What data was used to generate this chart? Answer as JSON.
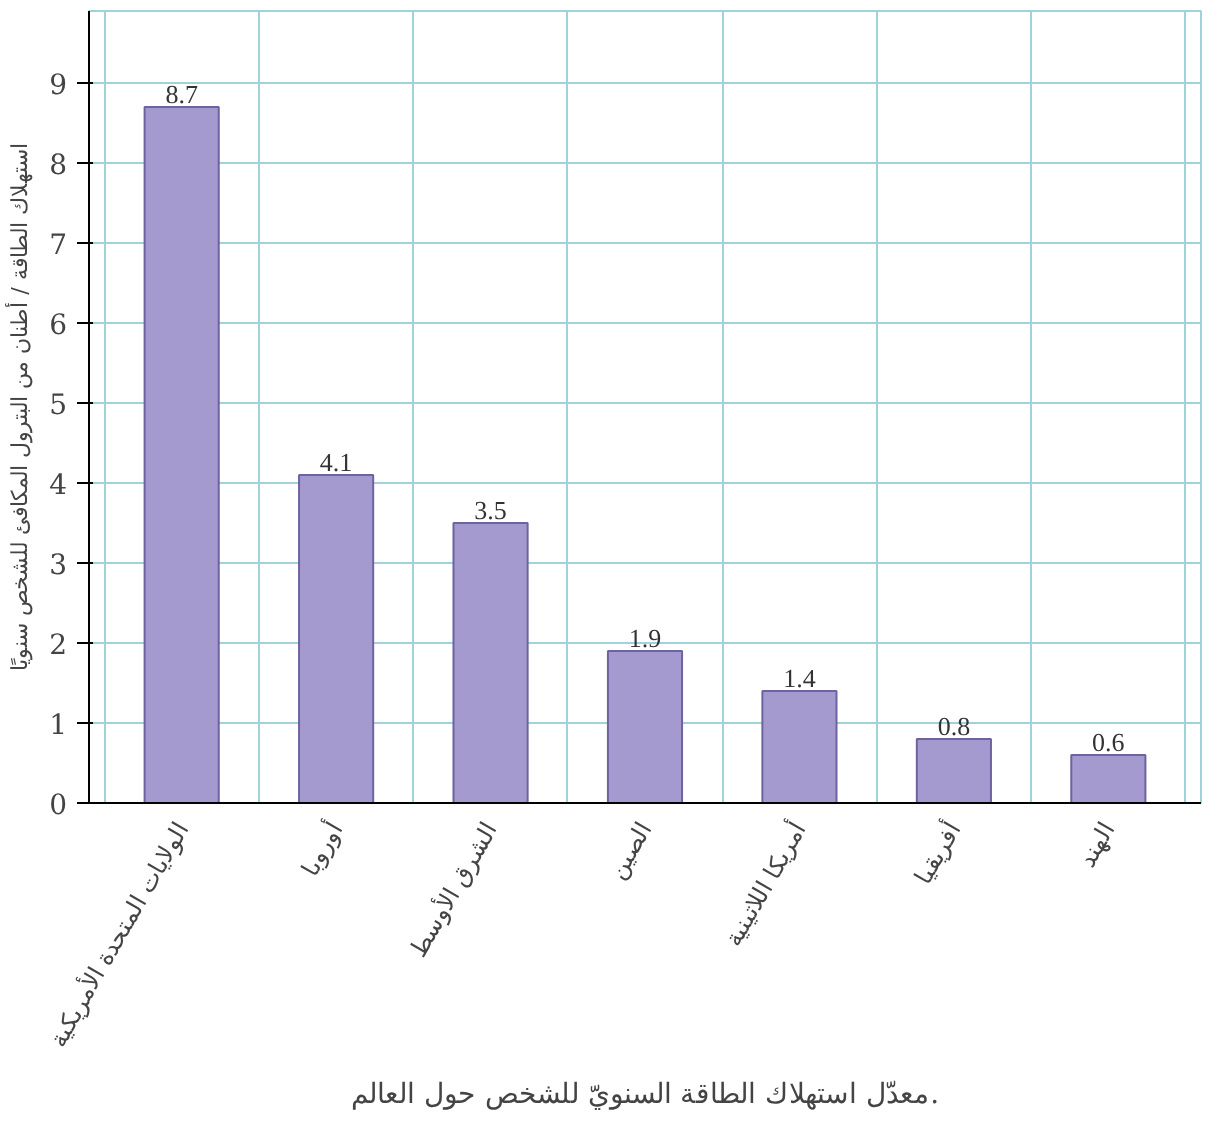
{
  "chart_data": {
    "type": "bar",
    "title": "معدّل استهلاك الطاقة السنويّ للشخص حول العالم.",
    "ylabel": "استهلاك الطاقة / أطنان من البترول المكافئ للشخص سنويًا",
    "categories": [
      "الولايات المتحدة الأمريكية",
      "أوروبا",
      "الشرق الأوسط",
      "الصين",
      "أمريكا اللاتينية",
      "أفريقيا",
      "الهند"
    ],
    "values": [
      8.7,
      4.1,
      3.5,
      1.9,
      1.4,
      0.8,
      0.6
    ],
    "color": "#a49ad0",
    "ylim": [
      0,
      9.9
    ],
    "yticks": [
      0,
      1,
      2,
      3,
      4,
      5,
      6,
      7,
      8,
      9
    ],
    "grid": true,
    "data_labels": true
  }
}
